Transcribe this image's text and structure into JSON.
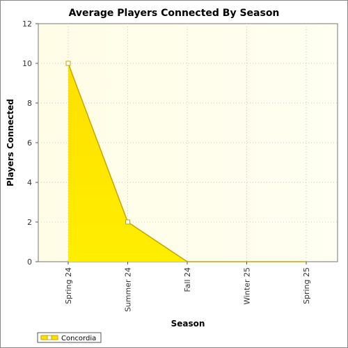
{
  "chart_data": {
    "type": "area",
    "title": "Average Players Connected By Season",
    "xlabel": "Season",
    "ylabel": "Players Connected",
    "categories": [
      "Spring 24",
      "Summer 24",
      "Fall 24",
      "Winter 25",
      "Spring 25"
    ],
    "ylim": [
      0,
      12
    ],
    "yticks": [
      0,
      2,
      4,
      6,
      8,
      10,
      12
    ],
    "grid": true,
    "legend": "bottom-left",
    "series": [
      {
        "name": "Concordia",
        "values": [
          10,
          2,
          0,
          0,
          0
        ]
      }
    ],
    "colors": {
      "fill_top": "#ffe000",
      "fill_bottom": "#ffee00",
      "line": "#c9a400",
      "plot_bg_left": "#fffde6",
      "plot_bg_right": "#fffff2"
    }
  }
}
